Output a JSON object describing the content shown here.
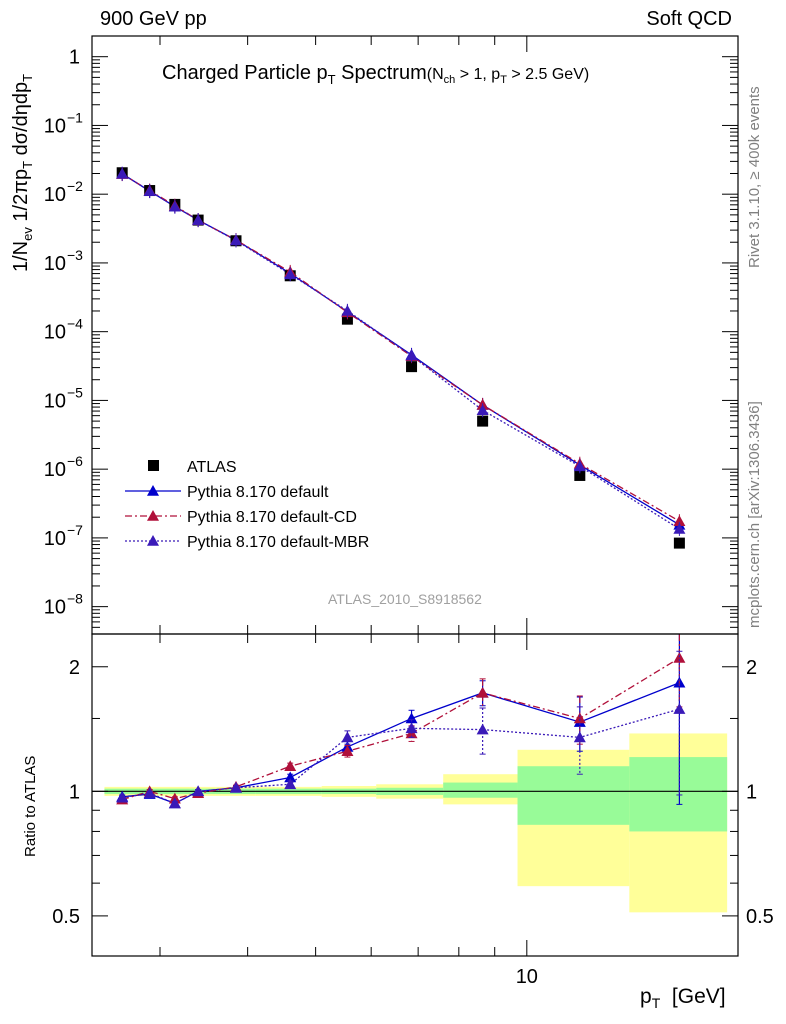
{
  "header": {
    "left": "900 GeV pp",
    "right": "Soft QCD"
  },
  "side": {
    "rivet": "Rivet 3.1.10, ≥ 400k events",
    "mcplots": "mcplots.cern.ch [arXiv:1306.3436]"
  },
  "chart_data": [
    {
      "type": "scatter",
      "title_main": "Charged Particle p",
      "title_main_sub": "T",
      "title_main_tail": " Spectrum",
      "title_cut": "(N",
      "title_cut_sub1": "ch",
      "title_cut_mid": " > 1, p",
      "title_cut_sub2": "T",
      "title_cut_tail": " > 2.5 GeV)",
      "ylabel": "1/N_ev 1/2πp_T dσ/dηdp_T",
      "yscale": "log",
      "ylim": [
        4e-09,
        2
      ],
      "xscale": "log",
      "xlim": [
        2.4,
        20
      ],
      "yticklabels": [
        "1",
        "10^-1",
        "10^-2",
        "10^-3",
        "10^-4",
        "10^-5",
        "10^-6",
        "10^-7",
        "10^-8"
      ],
      "watermark": "ATLAS_2010_S8918562",
      "legend_position": "bottom-left",
      "series": [
        {
          "name": "ATLAS",
          "color": "#000000",
          "marker": "square",
          "x": [
            2.65,
            2.9,
            3.15,
            3.4,
            3.85,
            4.6,
            5.55,
            6.85,
            8.65,
            11.9,
            16.5
          ],
          "y": [
            0.0205,
            0.0113,
            0.0071,
            0.0042,
            0.0021,
            0.00065,
            0.000152,
            3.1e-05,
            5e-06,
            8.1e-07,
            8.4e-08
          ]
        },
        {
          "name": "Pythia 8.170 default",
          "color": "#0000cc",
          "marker": "triangle",
          "line": "solid",
          "x": [
            2.65,
            2.9,
            3.15,
            3.4,
            3.85,
            4.6,
            5.55,
            6.85,
            8.65,
            11.9,
            16.5
          ],
          "y": [
            0.0198,
            0.0111,
            0.0066,
            0.0042,
            0.00215,
            0.000705,
            0.000195,
            4.6e-05,
            8.6e-06,
            1.15e-06,
            1.55e-07
          ]
        },
        {
          "name": "Pythia 8.170 default-CD",
          "color": "#b0103a",
          "marker": "triangle",
          "line": "dashdot",
          "x": [
            2.65,
            2.9,
            3.15,
            3.4,
            3.85,
            4.6,
            5.55,
            6.85,
            8.65,
            11.9,
            16.5
          ],
          "y": [
            0.0196,
            0.0113,
            0.0068,
            0.0042,
            0.00215,
            0.00074,
            0.000191,
            4.4e-05,
            8.6e-06,
            1.2e-06,
            1.75e-07
          ]
        },
        {
          "name": "Pythia 8.170 default-MBR",
          "color": "#3a1ab8",
          "marker": "triangle",
          "line": "dotted",
          "x": [
            2.65,
            2.9,
            3.15,
            3.4,
            3.85,
            4.6,
            5.55,
            6.85,
            8.65,
            11.9,
            16.5
          ],
          "y": [
            0.0198,
            0.0111,
            0.0066,
            0.0042,
            0.00212,
            0.000683,
            0.000201,
            4.5e-05,
            7.2e-06,
            1.1e-06,
            1.35e-07
          ]
        }
      ]
    },
    {
      "type": "scatter",
      "ylabel": "Ratio to ATLAS",
      "xlabel": "p_T [GeV]",
      "xscale": "log",
      "xlim": [
        2.4,
        20
      ],
      "xticklabels": [
        "10"
      ],
      "yscale": "log",
      "ylim": [
        0.4,
        2.4
      ],
      "yticks": [
        0.5,
        1,
        2
      ],
      "yticklabels": [
        "0.5",
        "1",
        "2"
      ],
      "bands": {
        "bin_edges": [
          2.5,
          2.8,
          3.0,
          3.3,
          3.6,
          4.1,
          5.1,
          6.1,
          7.6,
          9.7,
          14.0,
          19.3
        ],
        "green_lo": [
          0.985,
          0.985,
          0.985,
          0.985,
          0.985,
          0.985,
          0.985,
          0.98,
          0.965,
          0.83,
          0.8
        ],
        "green_hi": [
          1.015,
          1.015,
          1.015,
          1.015,
          1.015,
          1.015,
          1.015,
          1.02,
          1.05,
          1.15,
          1.21
        ],
        "yellow_lo": [
          0.975,
          0.975,
          0.975,
          0.975,
          0.975,
          0.975,
          0.97,
          0.96,
          0.93,
          0.59,
          0.51
        ],
        "yellow_hi": [
          1.025,
          1.025,
          1.025,
          1.025,
          1.025,
          1.025,
          1.03,
          1.04,
          1.1,
          1.26,
          1.38
        ],
        "green_color": "#98fb98",
        "yellow_color": "#ffff99"
      },
      "series": [
        {
          "name": "Pythia 8.170 default",
          "color": "#0000cc",
          "line": "solid",
          "x": [
            2.65,
            2.9,
            3.15,
            3.4,
            3.85,
            4.6,
            5.55,
            6.85,
            8.65,
            11.9,
            16.5
          ],
          "y": [
            0.97,
            0.985,
            0.935,
            1.0,
            1.02,
            1.08,
            1.28,
            1.5,
            1.73,
            1.47,
            1.83
          ],
          "err": [
            0.01,
            0.01,
            0.01,
            0.01,
            0.01,
            0.02,
            0.04,
            0.07,
            0.12,
            0.22,
            0.9
          ]
        },
        {
          "name": "Pythia 8.170 default-CD",
          "color": "#b0103a",
          "line": "dashdot",
          "x": [
            2.65,
            2.9,
            3.15,
            3.4,
            3.85,
            4.6,
            5.55,
            6.85,
            8.65,
            11.9,
            16.5
          ],
          "y": [
            0.955,
            1.0,
            0.96,
            0.99,
            1.025,
            1.15,
            1.25,
            1.38,
            1.73,
            1.5,
            2.1
          ],
          "err": [
            0.01,
            0.01,
            0.01,
            0.01,
            0.01,
            0.02,
            0.04,
            0.06,
            0.14,
            0.2,
            0.5
          ]
        },
        {
          "name": "Pythia 8.170 default-MBR",
          "color": "#3a1ab8",
          "line": "dotted",
          "x": [
            2.65,
            2.9,
            3.15,
            3.4,
            3.85,
            4.6,
            5.55,
            6.85,
            8.65,
            11.9,
            16.5
          ],
          "y": [
            0.965,
            0.99,
            0.935,
            1.0,
            1.02,
            1.04,
            1.35,
            1.42,
            1.41,
            1.35,
            1.58
          ],
          "err": [
            0.01,
            0.01,
            0.01,
            0.01,
            0.01,
            0.02,
            0.05,
            0.07,
            0.18,
            0.25,
            0.6
          ]
        }
      ]
    }
  ]
}
